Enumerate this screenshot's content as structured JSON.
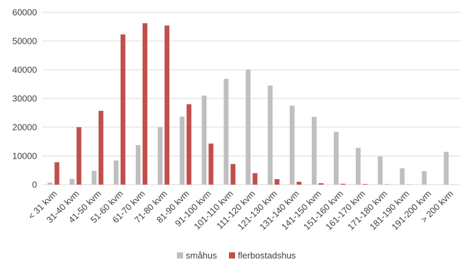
{
  "chart_data": {
    "type": "bar",
    "categories": [
      "< 31 kvm",
      "31-40 kvm",
      "41-50 kvm",
      "51-60 kvm",
      "61-70 kvm",
      "71-80 kvm",
      "81-90 kvm",
      "91-100 kvm",
      "101-110 kvm",
      "111-120 kvm",
      "121-130 kvm",
      "131-140 kvm",
      "141-150 kvm",
      "151-160 kvm",
      "161-170 kvm",
      "171-180 kvm",
      "181-190 kvm",
      "191-200 kvm",
      "> 200 kvm"
    ],
    "series": [
      {
        "name": "småhus",
        "color": "#bfbfbf",
        "values": [
          700,
          2000,
          4800,
          8400,
          13800,
          20000,
          23700,
          31000,
          36800,
          40000,
          34500,
          27500,
          23600,
          18400,
          12800,
          9800,
          5700,
          4700,
          11400
        ]
      },
      {
        "name": "flerbostadshus",
        "color": "#c0504d",
        "values": [
          7800,
          20000,
          25700,
          52300,
          56200,
          55400,
          28000,
          14300,
          7200,
          4000,
          1900,
          1000,
          500,
          300,
          200,
          100,
          50,
          30,
          20
        ]
      }
    ],
    "yticks": [
      "0",
      "10000",
      "20000",
      "30000",
      "40000",
      "50000",
      "60000"
    ],
    "ylim": [
      0,
      60000
    ],
    "grid": true,
    "legend": "bottom",
    "gridColor": "#d9d9d9"
  }
}
